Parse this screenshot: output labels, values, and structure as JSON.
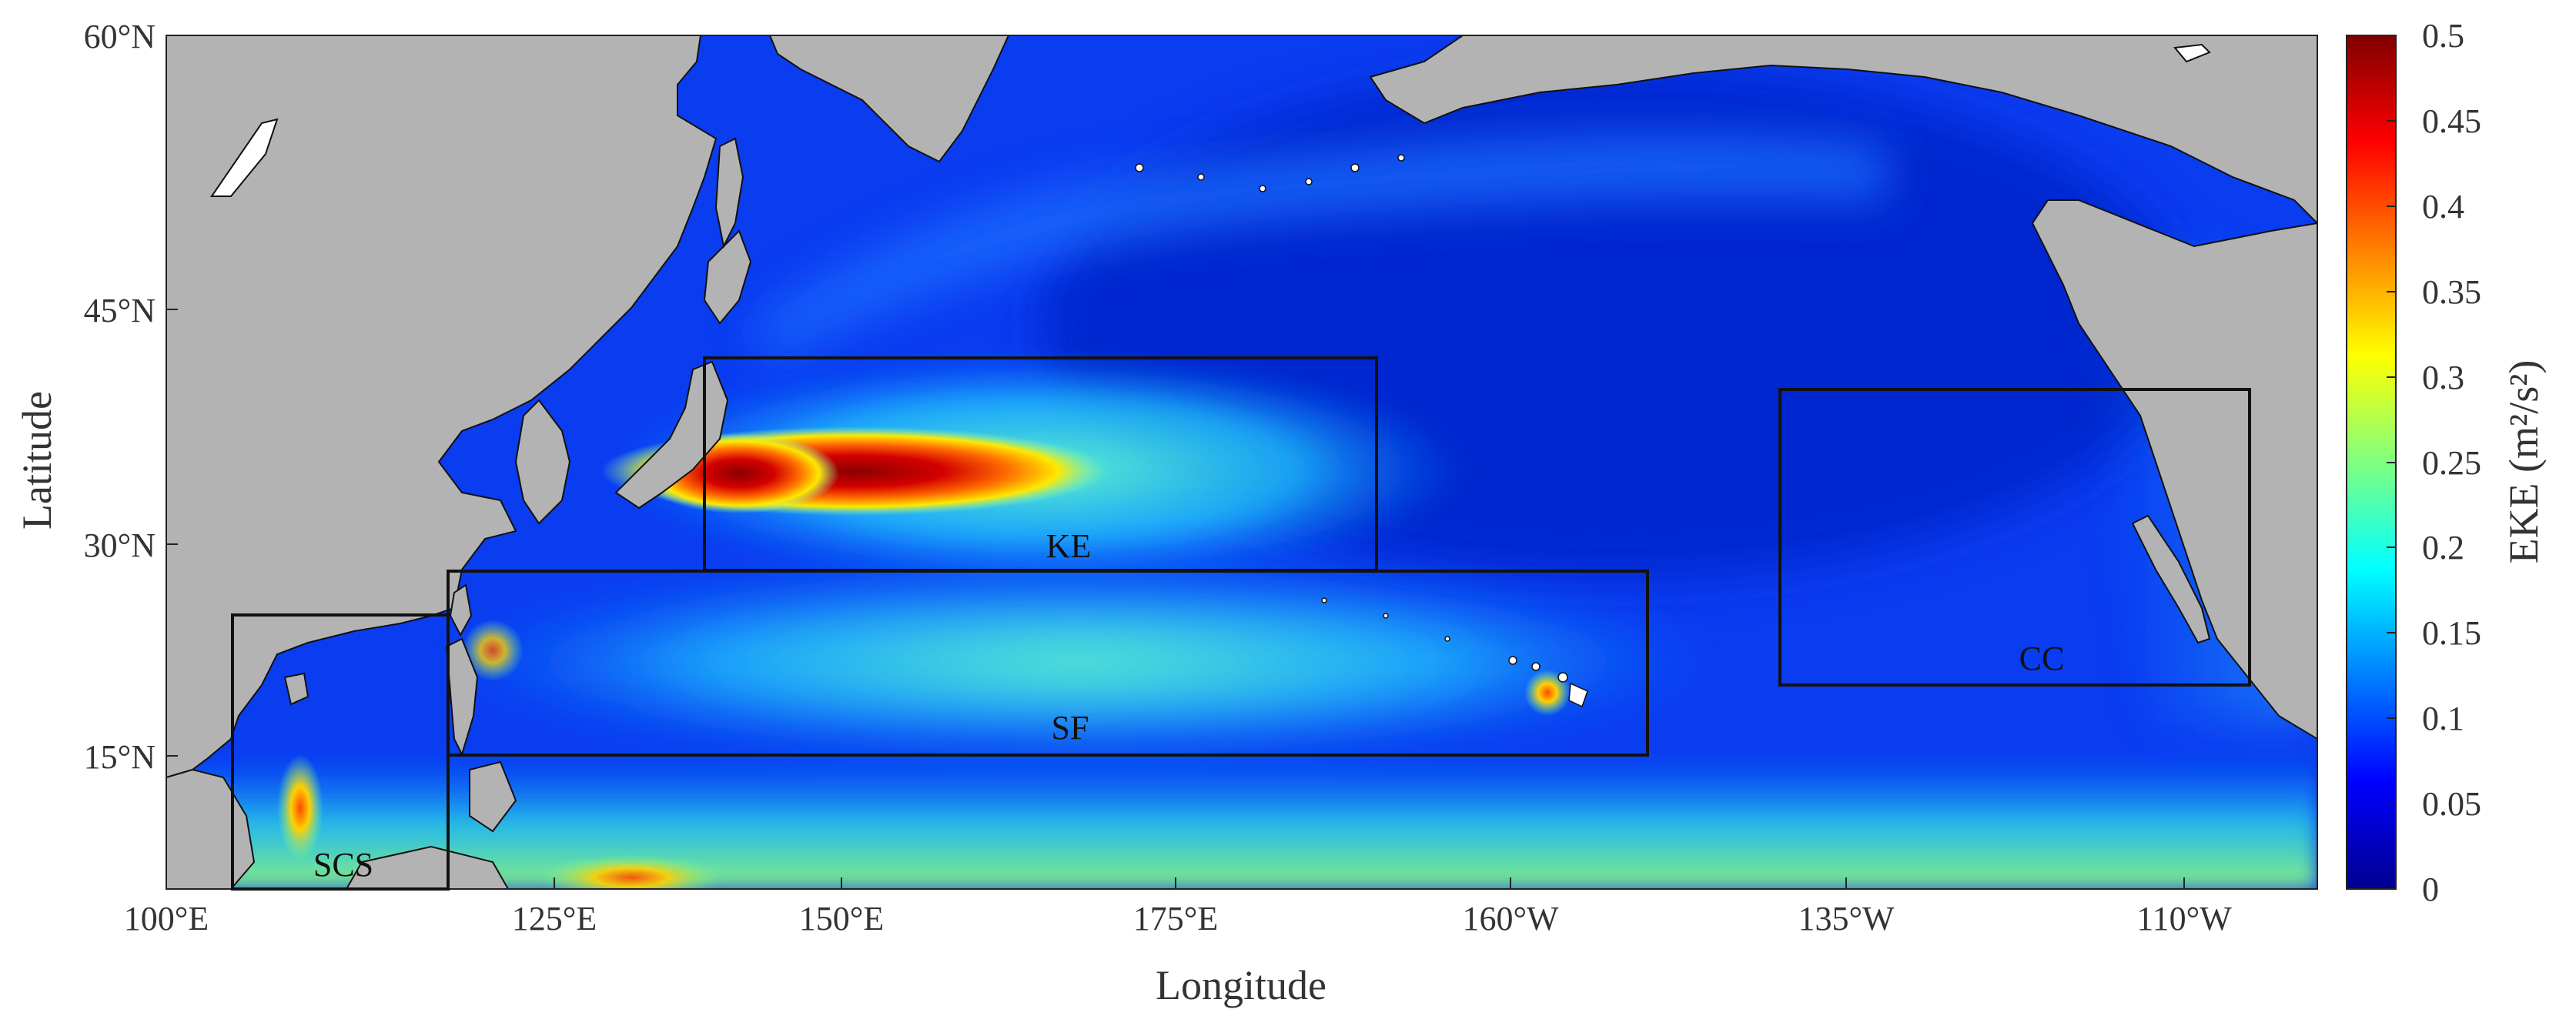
{
  "map": {
    "region": "North Pacific",
    "field": "eddy kinetic energy",
    "x_ticks": [
      "100°E",
      "125°E",
      "150°E",
      "175°E",
      "160°W",
      "135°W",
      "110°W"
    ],
    "y_ticks": [
      "60°N",
      "45°N",
      "30°N",
      "15°N"
    ],
    "xlabel": "Longitude",
    "ylabel": "Latitude",
    "lon_range": [
      100,
      260
    ],
    "lat_range": [
      5,
      60
    ],
    "land_color": "#b3b3b3",
    "colormap": "jet"
  },
  "colorbar": {
    "label": "EKE (m²/s²)",
    "ticks": [
      "0.5",
      "0.45",
      "0.4",
      "0.35",
      "0.3",
      "0.25",
      "0.2",
      "0.15",
      "0.1",
      "0.05",
      "0"
    ],
    "range": [
      0,
      0.5
    ]
  },
  "regions": [
    {
      "name": "KE",
      "lon": [
        140,
        190
      ],
      "lat": [
        28,
        42
      ]
    },
    {
      "name": "SF",
      "lon": [
        121,
        210
      ],
      "lat": [
        15,
        28
      ]
    },
    {
      "name": "SCS",
      "lon": [
        105,
        121
      ],
      "lat": [
        5,
        25
      ]
    },
    {
      "name": "CC",
      "lon": [
        222,
        257
      ],
      "lat": [
        20,
        40
      ]
    }
  ]
}
